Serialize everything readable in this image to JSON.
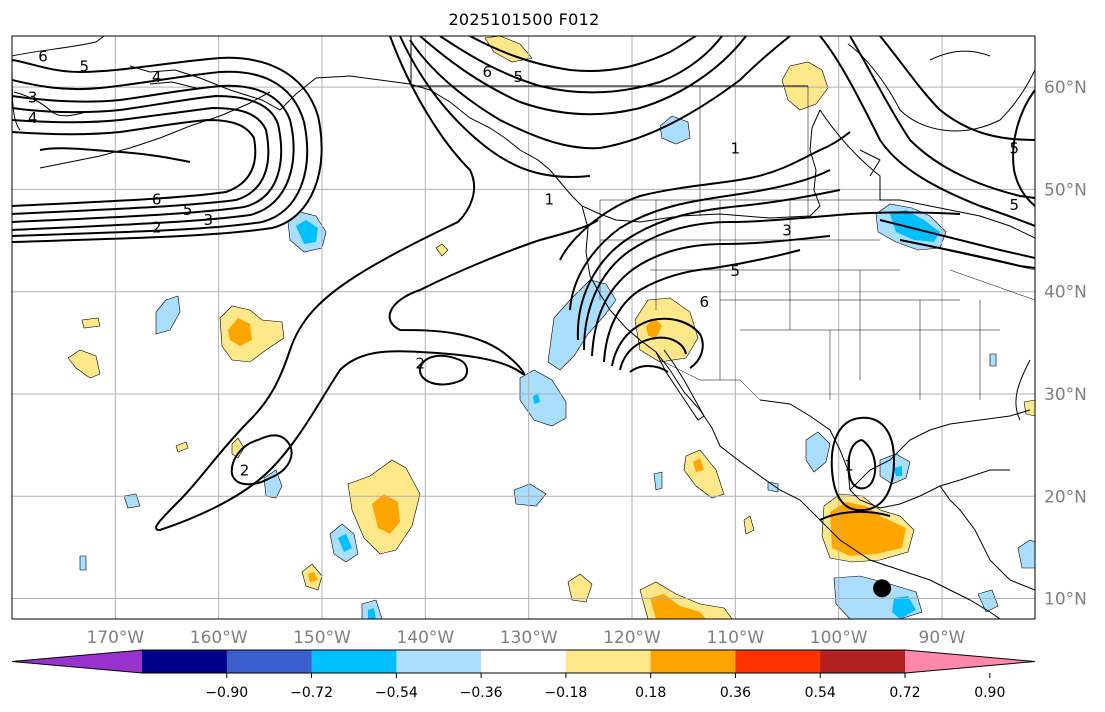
{
  "title": "2025101500 F012",
  "map": {
    "lon_range": [
      -180,
      -81
    ],
    "lat_range": [
      8,
      65
    ],
    "lon_ticks": [
      {
        "value": -170,
        "label": "170°W"
      },
      {
        "value": -160,
        "label": "160°W"
      },
      {
        "value": -150,
        "label": "150°W"
      },
      {
        "value": -140,
        "label": "140°W"
      },
      {
        "value": -130,
        "label": "130°W"
      },
      {
        "value": -120,
        "label": "120°W"
      },
      {
        "value": -110,
        "label": "110°W"
      },
      {
        "value": -100,
        "label": "100°W"
      },
      {
        "value": -90,
        "label": "90°W"
      }
    ],
    "lat_ticks": [
      {
        "value": 60,
        "label": "60°N"
      },
      {
        "value": 50,
        "label": "50°N"
      },
      {
        "value": 40,
        "label": "40°N"
      },
      {
        "value": 30,
        "label": "30°N"
      },
      {
        "value": 20,
        "label": "20°N"
      },
      {
        "value": 10,
        "label": "10°N"
      }
    ],
    "grid": true,
    "marker": {
      "lon": -95.8,
      "lat": 11.0,
      "color": "#000000"
    },
    "contour_labels": [
      {
        "text": "6",
        "lon": -177,
        "lat": 63
      },
      {
        "text": "5",
        "lon": -173,
        "lat": 62
      },
      {
        "text": "4",
        "lon": -166,
        "lat": 61
      },
      {
        "text": "3",
        "lon": -178,
        "lat": 59
      },
      {
        "text": "4",
        "lon": -178,
        "lat": 57
      },
      {
        "text": "6",
        "lon": -166,
        "lat": 49
      },
      {
        "text": "5",
        "lon": -163,
        "lat": 48
      },
      {
        "text": "3",
        "lon": -161,
        "lat": 47
      },
      {
        "text": "2",
        "lon": -166,
        "lat": 46.3
      },
      {
        "text": "6",
        "lon": -134,
        "lat": 61.5
      },
      {
        "text": "5",
        "lon": -131,
        "lat": 61
      },
      {
        "text": "1",
        "lon": -110,
        "lat": 54
      },
      {
        "text": "1",
        "lon": -128,
        "lat": 49
      },
      {
        "text": "3",
        "lon": -105,
        "lat": 46
      },
      {
        "text": "6",
        "lon": -113,
        "lat": 39
      },
      {
        "text": "5",
        "lon": -110,
        "lat": 42
      },
      {
        "text": "2",
        "lon": -140.5,
        "lat": 33
      },
      {
        "text": "2",
        "lon": -157.5,
        "lat": 22.5
      },
      {
        "text": "1",
        "lon": -99,
        "lat": 23
      },
      {
        "text": "5",
        "lon": -83,
        "lat": 54
      },
      {
        "text": "5",
        "lon": -83,
        "lat": 48.5
      }
    ]
  },
  "colorbar": {
    "colors": [
      "#9932cc",
      "#00008b",
      "#3a5fcd",
      "#00bfff",
      "#aadeff",
      "#ffffff",
      "#ffe88a",
      "#ffa500",
      "#ff3300",
      "#b22222",
      "#ff88aa"
    ],
    "tick_labels": [
      "−0.90",
      "−0.72",
      "−0.54",
      "−0.36",
      "−0.18",
      "0.18",
      "0.36",
      "0.54",
      "0.72",
      "0.90"
    ]
  },
  "colors": {
    "grid": "#b0b0b0",
    "coast": "#000000",
    "contour": "#000000",
    "tick_label": "#808080"
  }
}
